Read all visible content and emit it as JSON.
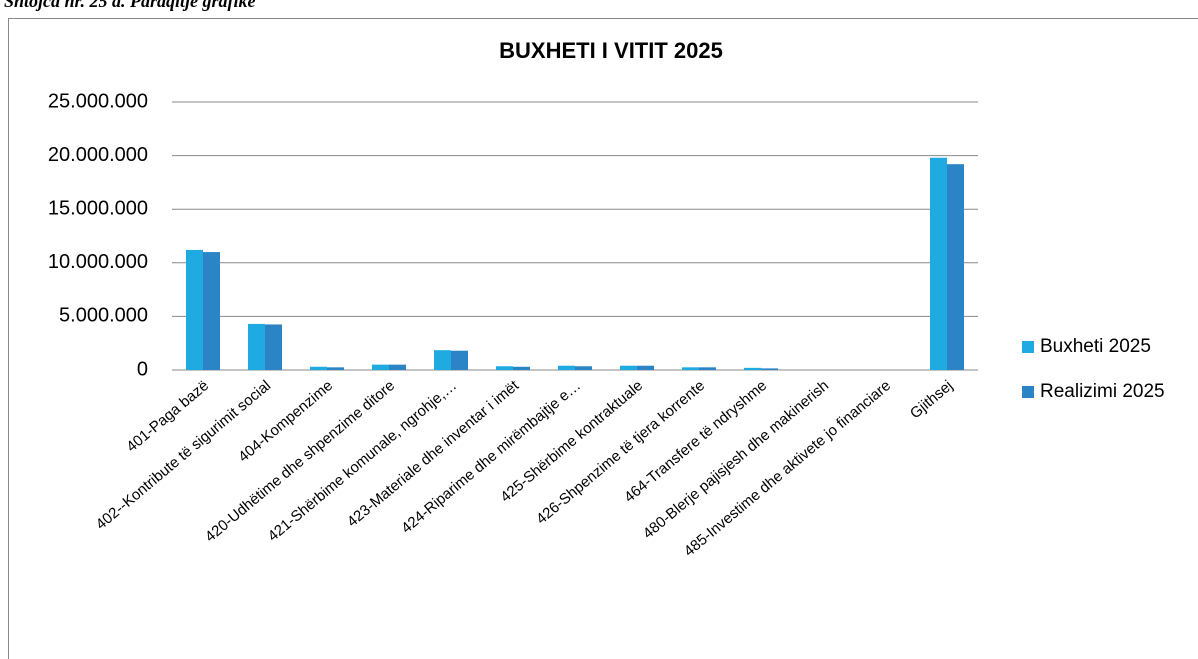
{
  "caption": "Shtojca nr. 25 a. Paraqitje grafike",
  "chart_data": {
    "type": "bar",
    "title": "BUXHETI I VITIT 2025",
    "categories": [
      "401-Paga bazë",
      "402--Kontribute të sigurimit social",
      "404-Kompenzime",
      "420-Udhëtime dhe shpenzime ditore",
      "421-Shërbime komunale, ngrohje,…",
      "423-Materiale dhe inventar i imët",
      "424-Riparime dhe mirëmbajtje e…",
      "425-Shërbime kontraktuale",
      "426-Shpenzime të tjera korrente",
      "464-Transfere të ndryshme",
      "480-Blerje pajisjesh dhe makinerish",
      "485-Investime dhe aktivete jo financiare",
      "Gjithsej"
    ],
    "series": [
      {
        "name": "Buxheti 2025",
        "color": "#1faae2",
        "values": [
          11200000,
          4300000,
          300000,
          500000,
          1850000,
          350000,
          400000,
          400000,
          250000,
          200000,
          0,
          0,
          19800000
        ]
      },
      {
        "name": "Realizimi 2025",
        "color": "#2b84c6",
        "values": [
          11000000,
          4250000,
          250000,
          500000,
          1800000,
          300000,
          350000,
          400000,
          250000,
          150000,
          0,
          0,
          19200000
        ]
      }
    ],
    "ylim": [
      0,
      25000000
    ],
    "yticks": [
      0,
      {
        "value": 5000000,
        "label": "5.000.000"
      },
      {
        "value": 10000000,
        "label": "10.000.000"
      },
      {
        "value": 15000000,
        "label": "15.000.000"
      },
      {
        "value": 20000000,
        "label": "20.000.000"
      },
      {
        "value": 25000000,
        "label": "25.000.000"
      }
    ],
    "grid": true,
    "legend": "right"
  }
}
